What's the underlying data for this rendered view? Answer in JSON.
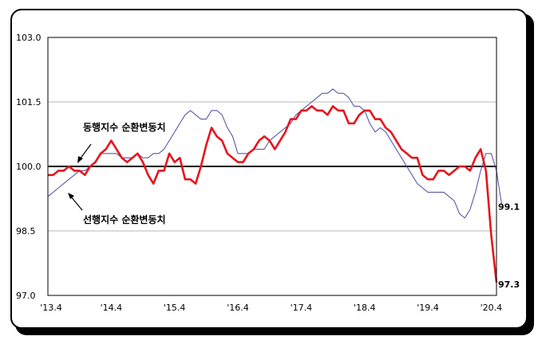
{
  "chart_data": {
    "type": "line",
    "title": "",
    "xlabel": "",
    "ylabel": "",
    "ylim": [
      97.0,
      103.0
    ],
    "yticks": [
      "97.0",
      "98.5",
      "100.0",
      "101.5",
      "103.0"
    ],
    "x_start_label": "'13.4",
    "xticks": [
      "'13.4",
      "'14.4",
      "'15.4",
      "'16.4",
      "'17.4",
      "'18.4",
      "'19.4",
      "'20.4"
    ],
    "reference_line": 100.0,
    "grid": true,
    "series": [
      {
        "name": "동행지수 순환변동치",
        "color": "#e8141c",
        "end_label": "97.3",
        "values": [
          99.8,
          99.8,
          99.9,
          99.9,
          100.0,
          99.9,
          99.9,
          99.8,
          100.0,
          100.1,
          100.3,
          100.4,
          100.6,
          100.4,
          100.2,
          100.1,
          100.2,
          100.3,
          100.1,
          99.8,
          99.6,
          99.9,
          99.9,
          100.3,
          100.1,
          100.2,
          99.7,
          99.7,
          99.6,
          100.0,
          100.5,
          100.9,
          100.7,
          100.6,
          100.3,
          100.2,
          100.1,
          100.1,
          100.3,
          100.4,
          100.6,
          100.7,
          100.6,
          100.4,
          100.6,
          100.8,
          101.1,
          101.1,
          101.3,
          101.3,
          101.4,
          101.3,
          101.3,
          101.2,
          101.4,
          101.3,
          101.3,
          101.0,
          101.0,
          101.2,
          101.3,
          101.3,
          101.1,
          101.1,
          100.9,
          100.8,
          100.6,
          100.4,
          100.3,
          100.2,
          100.2,
          99.8,
          99.7,
          99.7,
          99.9,
          99.9,
          99.8,
          99.9,
          100.0,
          100.0,
          99.9,
          100.2,
          100.4,
          99.9,
          98.4,
          97.3
        ]
      },
      {
        "name": "선행지수 순환변동치",
        "color": "#5a5aa8",
        "end_label": "99.1",
        "values": [
          99.3,
          99.4,
          99.5,
          99.6,
          99.7,
          99.8,
          99.9,
          99.9,
          100.0,
          100.1,
          100.3,
          100.3,
          100.3,
          100.3,
          100.2,
          100.2,
          100.2,
          100.3,
          100.2,
          100.2,
          100.3,
          100.3,
          100.4,
          100.6,
          100.8,
          101.0,
          101.2,
          101.3,
          101.2,
          101.1,
          101.1,
          101.3,
          101.3,
          101.2,
          100.9,
          100.7,
          100.3,
          100.3,
          100.3,
          100.4,
          100.4,
          100.4,
          100.6,
          100.7,
          100.8,
          100.9,
          101.0,
          101.2,
          101.3,
          101.4,
          101.5,
          101.6,
          101.7,
          101.7,
          101.8,
          101.7,
          101.7,
          101.6,
          101.4,
          101.4,
          101.3,
          101.0,
          100.8,
          100.9,
          100.8,
          100.6,
          100.4,
          100.2,
          100.0,
          99.8,
          99.6,
          99.5,
          99.4,
          99.4,
          99.4,
          99.4,
          99.3,
          99.2,
          98.9,
          98.8,
          99.0,
          99.4,
          99.9,
          100.3,
          100.3,
          99.9,
          99.1
        ]
      }
    ],
    "annotations": [
      {
        "text": "동행지수 순환변동치",
        "series": 0
      },
      {
        "text": "선행지수 순환변동치",
        "series": 1
      }
    ]
  }
}
